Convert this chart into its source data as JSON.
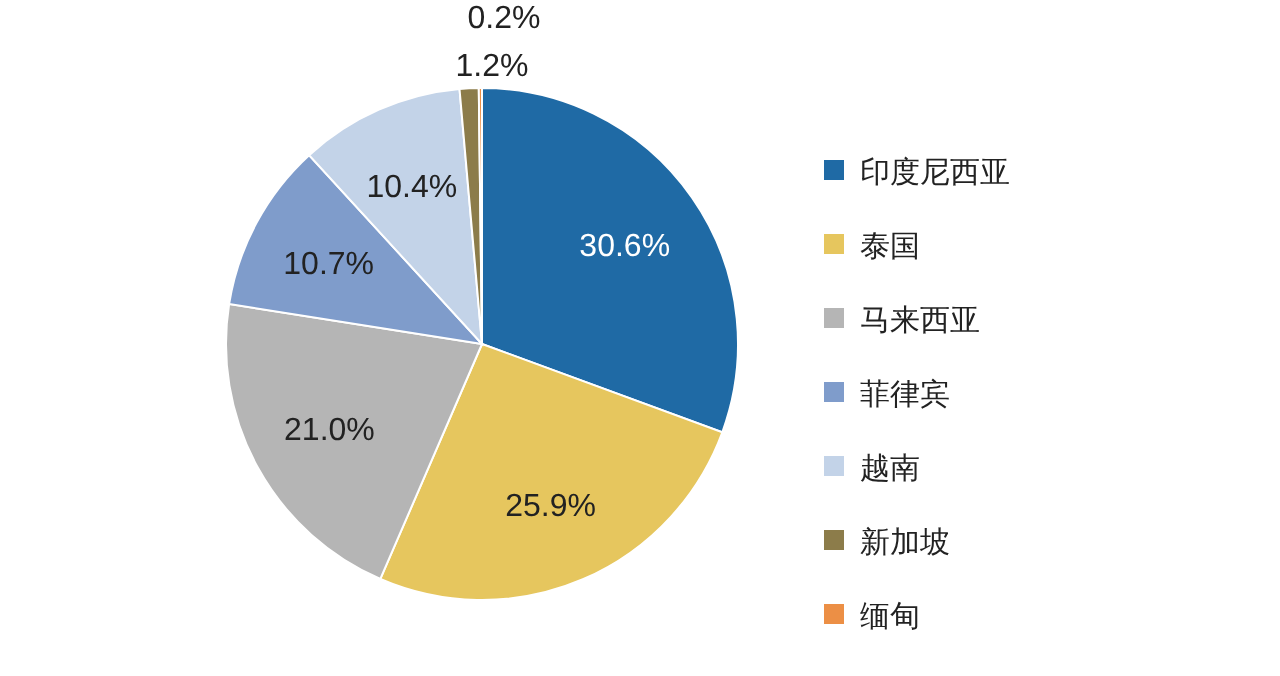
{
  "chart_data": {
    "type": "pie",
    "categories": [
      "印度尼西亚",
      "泰国",
      "马来西亚",
      "菲律宾",
      "越南",
      "新加坡",
      "缅甸"
    ],
    "values": [
      30.6,
      25.9,
      21.0,
      10.7,
      10.4,
      1.2,
      0.2
    ],
    "colors": [
      "#1f6aa5",
      "#e6c65e",
      "#b5b5b5",
      "#7f9ccb",
      "#c3d3e8",
      "#8c7c4a",
      "#ec8f45"
    ],
    "value_labels": [
      "30.6%",
      "25.9%",
      "21.0%",
      "10.7%",
      "10.4%",
      "1.2%",
      "0.2%"
    ],
    "legend": "right"
  }
}
